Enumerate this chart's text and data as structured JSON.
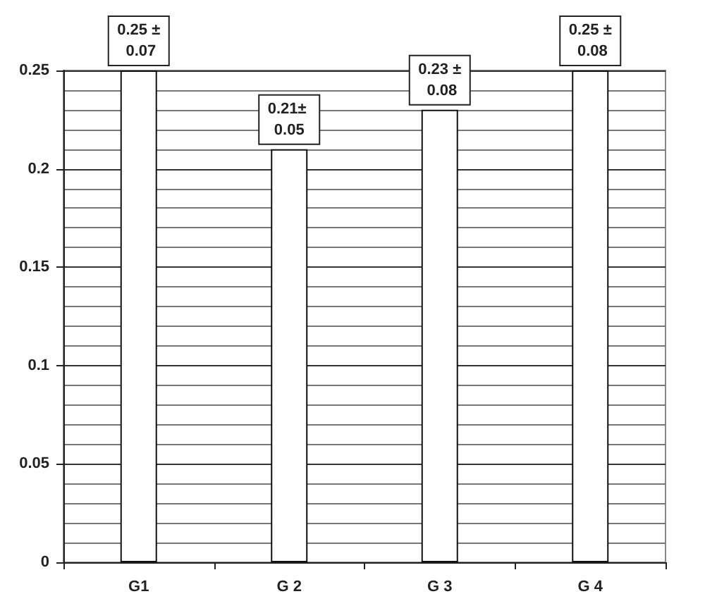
{
  "chart_data": {
    "type": "bar",
    "categories": [
      "G1",
      "G 2",
      "G 3",
      "G 4"
    ],
    "values": [
      0.25,
      0.21,
      0.23,
      0.25
    ],
    "color": "#ffffff",
    "value_labels": [
      "0.25 ± 0.07",
      "0.21± 0.05",
      "0.23 ± 0.08",
      "0.25 ± 0.08"
    ],
    "ylim": [
      0,
      0.25
    ],
    "yticks": [
      0,
      0.05,
      0.1,
      0.15,
      0.2,
      0.25
    ],
    "grid": "y"
  }
}
